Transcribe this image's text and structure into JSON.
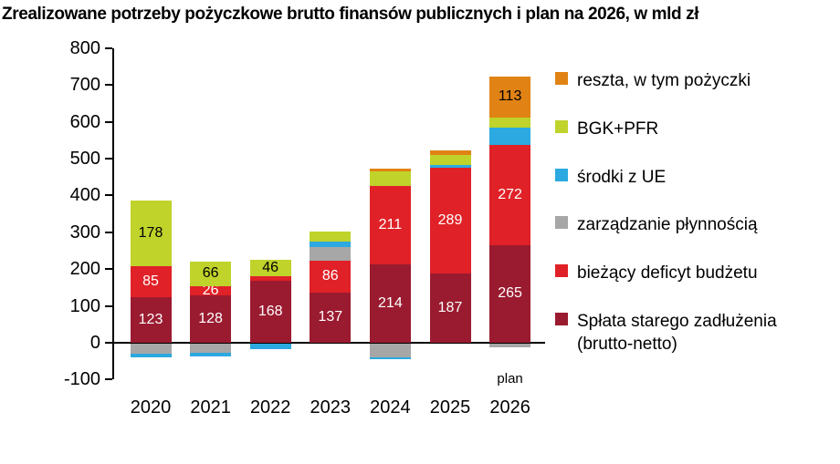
{
  "chart_data": {
    "type": "bar",
    "stacked": true,
    "title": "Zrealizowane potrzeby pożyczkowe brutto finansów publicznych i plan na 2026, w mld zł",
    "unit": "mld zł",
    "categories": [
      "2020",
      "2021",
      "2022",
      "2023",
      "2024",
      "2025",
      "2026"
    ],
    "category_note": {
      "category": "2026",
      "text": "plan"
    },
    "ylim": [
      -100,
      800
    ],
    "yticks": [
      800,
      700,
      600,
      500,
      400,
      300,
      200,
      100,
      0,
      -100
    ],
    "grid": false,
    "legend_position": "right",
    "series": [
      {
        "name": "Spłata starego zadłużenia (brutto-netto)",
        "color": "#9A1B30",
        "label_color": "#FFFFFF",
        "values": [
          123,
          128,
          168,
          137,
          214,
          187,
          265
        ],
        "labeled": [
          true,
          true,
          true,
          true,
          true,
          true,
          true
        ]
      },
      {
        "name": "bieżący deficyt budżetu",
        "color": "#E02127",
        "label_color": "#FFFFFF",
        "values": [
          85,
          26,
          12,
          86,
          211,
          289,
          272
        ],
        "labeled": [
          true,
          true,
          false,
          true,
          true,
          true,
          true
        ]
      },
      {
        "name": "zarządzanie płynnością",
        "color": "#A7A7A7",
        "label_color": "#000000",
        "values": [
          -26,
          -24,
          0,
          38,
          -37,
          0,
          -10
        ],
        "labeled": [
          false,
          false,
          false,
          false,
          false,
          false,
          false
        ]
      },
      {
        "name": "środki z UE",
        "color": "#2BA9E0",
        "label_color": "#000000",
        "values": [
          -11,
          -11,
          -16,
          14,
          -4,
          7,
          47
        ],
        "labeled": [
          false,
          false,
          false,
          false,
          false,
          false,
          false
        ]
      },
      {
        "name": "BGK+PFR",
        "color": "#BFD32B",
        "label_color": "#000000",
        "values": [
          178,
          66,
          46,
          28,
          40,
          27,
          27
        ],
        "labeled": [
          true,
          true,
          true,
          false,
          false,
          false,
          false
        ]
      },
      {
        "name": "reszta, w tym pożyczki",
        "color": "#E08314",
        "label_color": "#000000",
        "values": [
          0,
          0,
          0,
          0,
          8,
          12,
          113
        ],
        "labeled": [
          false,
          false,
          false,
          false,
          false,
          false,
          true
        ]
      }
    ],
    "legend": [
      {
        "label": "reszta, w tym pożyczki",
        "color": "#E08314"
      },
      {
        "label": "BGK+PFR",
        "color": "#BFD32B"
      },
      {
        "label": "środki z UE",
        "color": "#2BA9E0"
      },
      {
        "label": "zarządzanie płynnością",
        "color": "#A7A7A7"
      },
      {
        "label": "bieżący deficyt budżetu",
        "color": "#E02127"
      },
      {
        "label": "Spłata starego zadłużenia (brutto-netto)",
        "color": "#9A1B30"
      }
    ]
  }
}
